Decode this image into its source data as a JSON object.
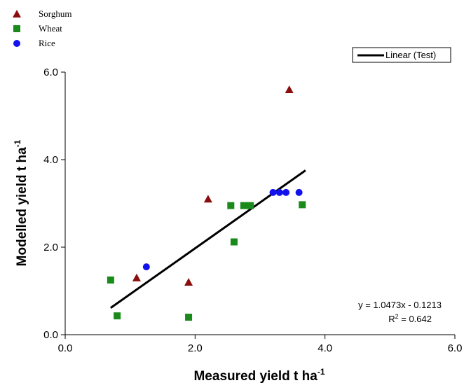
{
  "chart_data": {
    "type": "scatter",
    "xlabel": "Measured yield t ha",
    "xlabel_sup": "-1",
    "ylabel": "Modelled yield t ha",
    "ylabel_sup": "-1",
    "xlim": [
      0,
      6
    ],
    "ylim": [
      0,
      6
    ],
    "xticks": [
      {
        "value": 0,
        "label": "0.0"
      },
      {
        "value": 2,
        "label": "2.0"
      },
      {
        "value": 4,
        "label": "4.0"
      },
      {
        "value": 6,
        "label": "6.0"
      }
    ],
    "yticks": [
      {
        "value": 0,
        "label": "0.0"
      },
      {
        "value": 2,
        "label": "2.0"
      },
      {
        "value": 4,
        "label": "4.0"
      },
      {
        "value": 6,
        "label": "6.0"
      }
    ],
    "grid": false,
    "legend_placement": "top-left",
    "series": [
      {
        "name": "Sorghum",
        "marker": "triangle",
        "color": "#8b0e0e",
        "points": [
          [
            1.1,
            1.3
          ],
          [
            1.9,
            1.2
          ],
          [
            2.2,
            3.1
          ],
          [
            3.45,
            5.6
          ]
        ]
      },
      {
        "name": "Wheat",
        "marker": "square",
        "color": "#1a8a1a",
        "points": [
          [
            0.7,
            1.25
          ],
          [
            0.8,
            0.43
          ],
          [
            1.9,
            0.4
          ],
          [
            2.55,
            2.95
          ],
          [
            2.6,
            2.12
          ],
          [
            2.75,
            2.95
          ],
          [
            2.85,
            2.95
          ],
          [
            3.65,
            2.97
          ]
        ]
      },
      {
        "name": "Rice",
        "marker": "circle",
        "color": "#1212ee",
        "points": [
          [
            1.25,
            1.55
          ],
          [
            3.2,
            3.25
          ],
          [
            3.3,
            3.25
          ],
          [
            3.4,
            3.25
          ],
          [
            3.6,
            3.25
          ]
        ]
      }
    ],
    "trendline": {
      "name": "Linear (Test)",
      "slope": 1.0473,
      "intercept": -0.1213,
      "x_range": [
        0.7,
        3.7
      ],
      "color": "#000000",
      "equation": "y = 1.0473x - 0.1213",
      "r2_prefix": "R",
      "r2_sup": "2",
      "r2_value": " = 0.642"
    }
  }
}
